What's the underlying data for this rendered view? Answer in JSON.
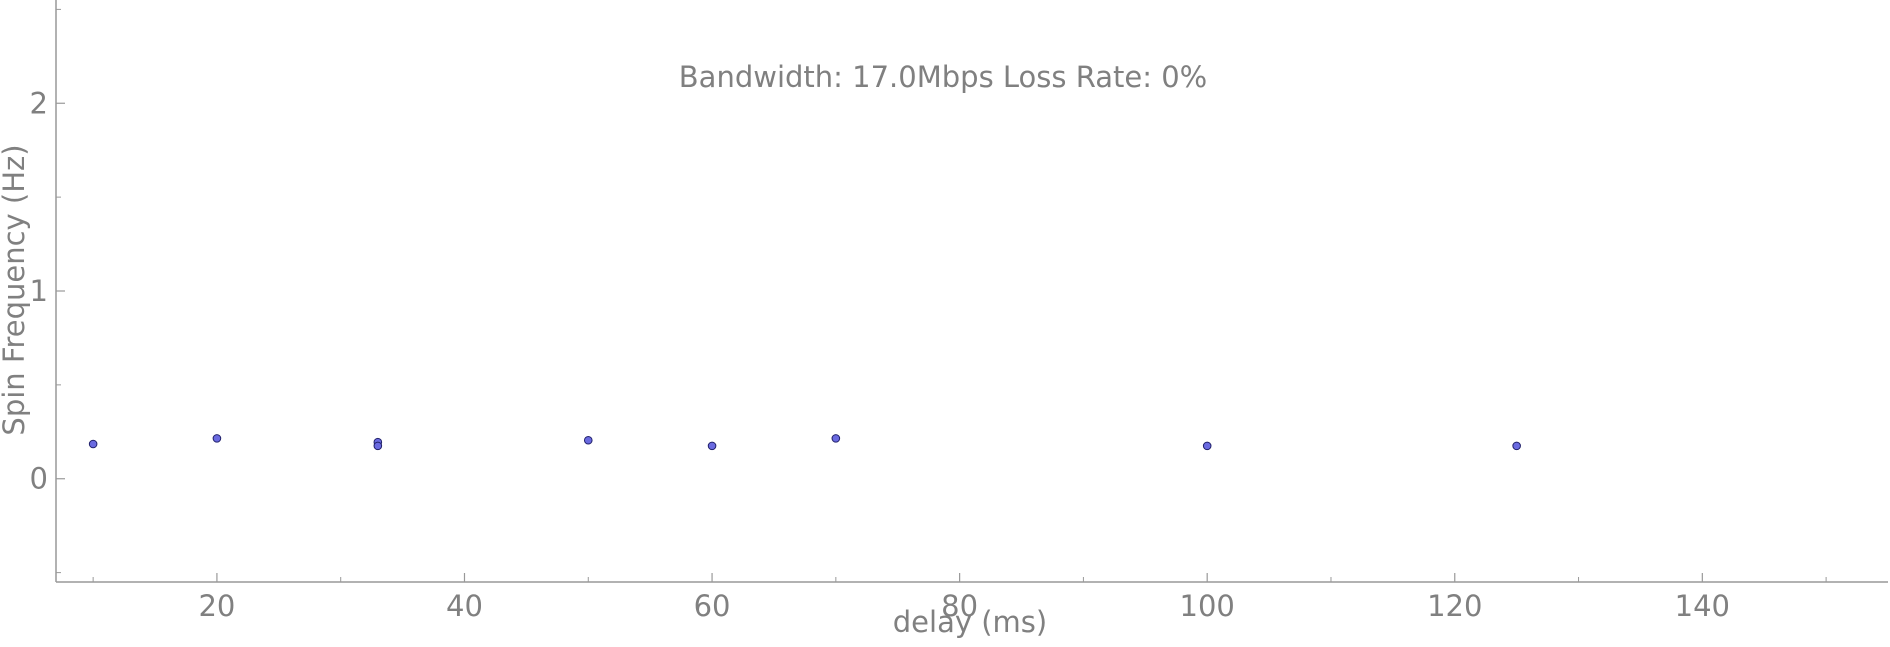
{
  "chart_data": {
    "type": "scatter",
    "title": "Bandwidth: 17.0Mbps Loss Rate: 0%",
    "xlabel": "delay (ms)",
    "ylabel": "Spin Frequency (Hz)",
    "xlim": [
      7,
      155
    ],
    "ylim": [
      -0.55,
      2.55
    ],
    "x_ticks": [
      20,
      40,
      60,
      80,
      100,
      120,
      140
    ],
    "y_ticks": [
      0,
      1,
      2
    ],
    "grid": false,
    "colors": {
      "point_fill": "#6a6ae0",
      "point_stroke": "#20206a",
      "axis": "#999999",
      "text": "#808080"
    },
    "series": [
      {
        "points": [
          {
            "x": 10,
            "y": 0.185
          },
          {
            "x": 20,
            "y": 0.215
          },
          {
            "x": 33,
            "y": 0.195
          },
          {
            "x": 33,
            "y": 0.175
          },
          {
            "x": 50,
            "y": 0.205
          },
          {
            "x": 60,
            "y": 0.175
          },
          {
            "x": 70,
            "y": 0.215
          },
          {
            "x": 100,
            "y": 0.175
          },
          {
            "x": 125,
            "y": 0.175
          }
        ]
      }
    ]
  }
}
